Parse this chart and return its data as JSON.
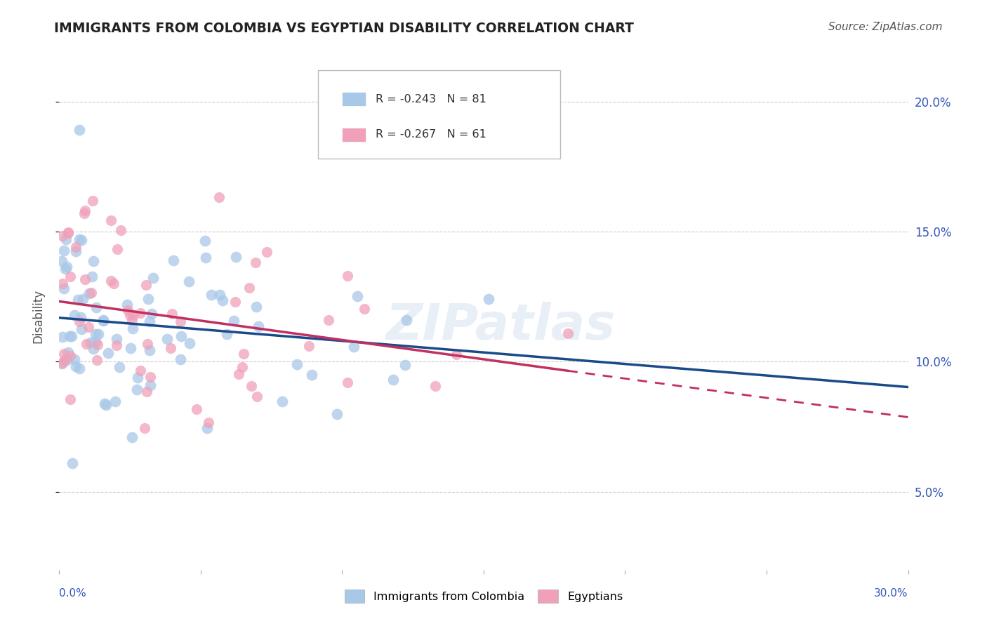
{
  "title": "IMMIGRANTS FROM COLOMBIA VS EGYPTIAN DISABILITY CORRELATION CHART",
  "source": "Source: ZipAtlas.com",
  "ylabel": "Disability",
  "xlim": [
    0.0,
    0.3
  ],
  "ylim": [
    0.02,
    0.215
  ],
  "yticks": [
    0.05,
    0.1,
    0.15,
    0.2
  ],
  "ytick_labels": [
    "5.0%",
    "10.0%",
    "15.0%",
    "20.0%"
  ],
  "legend1_r": "-0.243",
  "legend1_n": "81",
  "legend2_r": "-0.267",
  "legend2_n": "61",
  "blue_color": "#a8c8e8",
  "pink_color": "#f0a0b8",
  "blue_line_color": "#1a4a8a",
  "pink_line_color": "#c03060",
  "label1": "Immigrants from Colombia",
  "label2": "Egyptians",
  "tick_color": "#3355bb",
  "grid_color": "#cccccc",
  "title_color": "#222222",
  "source_color": "#555555"
}
